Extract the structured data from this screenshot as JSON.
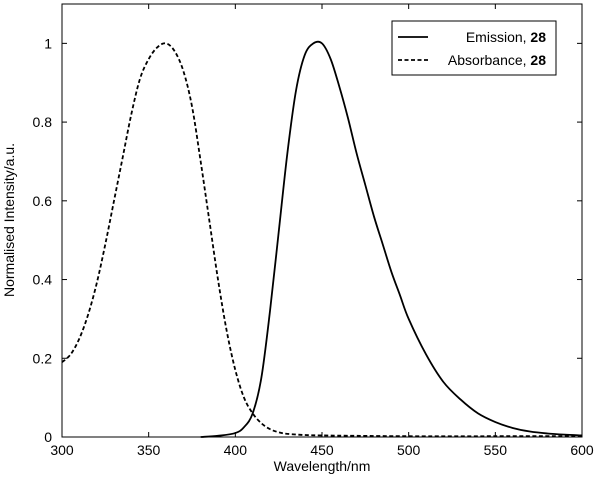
{
  "chart_data": {
    "type": "line",
    "xlabel": "Wavelength/nm",
    "ylabel": "Normalised Intensity/a.u.",
    "xlim": [
      300,
      600
    ],
    "ylim": [
      0,
      1.1
    ],
    "xticks": [
      "300",
      "350",
      "400",
      "450",
      "500",
      "550",
      "600"
    ],
    "yticks": [
      "0",
      "0.2",
      "0.4",
      "0.6",
      "0.8",
      "1"
    ],
    "grid": false,
    "legend_position": "top-right",
    "series": [
      {
        "name": "Emission, ",
        "name_bold": "28",
        "style": "solid",
        "color": "#000000",
        "x": [
          380,
          390,
          400,
          405,
          410,
          415,
          420,
          425,
          430,
          435,
          440,
          445,
          450,
          455,
          460,
          465,
          470,
          475,
          480,
          485,
          490,
          495,
          500,
          510,
          520,
          530,
          540,
          550,
          560,
          570,
          580,
          590,
          600
        ],
        "y": [
          0.0,
          0.003,
          0.01,
          0.025,
          0.06,
          0.15,
          0.32,
          0.52,
          0.72,
          0.88,
          0.97,
          1.0,
          1.0,
          0.96,
          0.89,
          0.81,
          0.72,
          0.64,
          0.56,
          0.49,
          0.42,
          0.36,
          0.3,
          0.21,
          0.14,
          0.095,
          0.06,
          0.038,
          0.023,
          0.014,
          0.009,
          0.006,
          0.004
        ]
      },
      {
        "name": "Absorbance, ",
        "name_bold": "28",
        "style": "dashed",
        "color": "#000000",
        "x": [
          300,
          305,
          310,
          315,
          320,
          325,
          330,
          335,
          340,
          345,
          350,
          355,
          360,
          365,
          370,
          375,
          380,
          385,
          390,
          395,
          400,
          405,
          410,
          415,
          420,
          425,
          430,
          440,
          450,
          470,
          500,
          550,
          600
        ],
        "y": [
          0.19,
          0.21,
          0.25,
          0.31,
          0.39,
          0.49,
          0.6,
          0.71,
          0.82,
          0.91,
          0.96,
          0.99,
          1.0,
          0.98,
          0.93,
          0.84,
          0.7,
          0.55,
          0.4,
          0.27,
          0.17,
          0.1,
          0.06,
          0.035,
          0.02,
          0.012,
          0.008,
          0.005,
          0.004,
          0.003,
          0.002,
          0.002,
          0.002
        ]
      }
    ]
  }
}
